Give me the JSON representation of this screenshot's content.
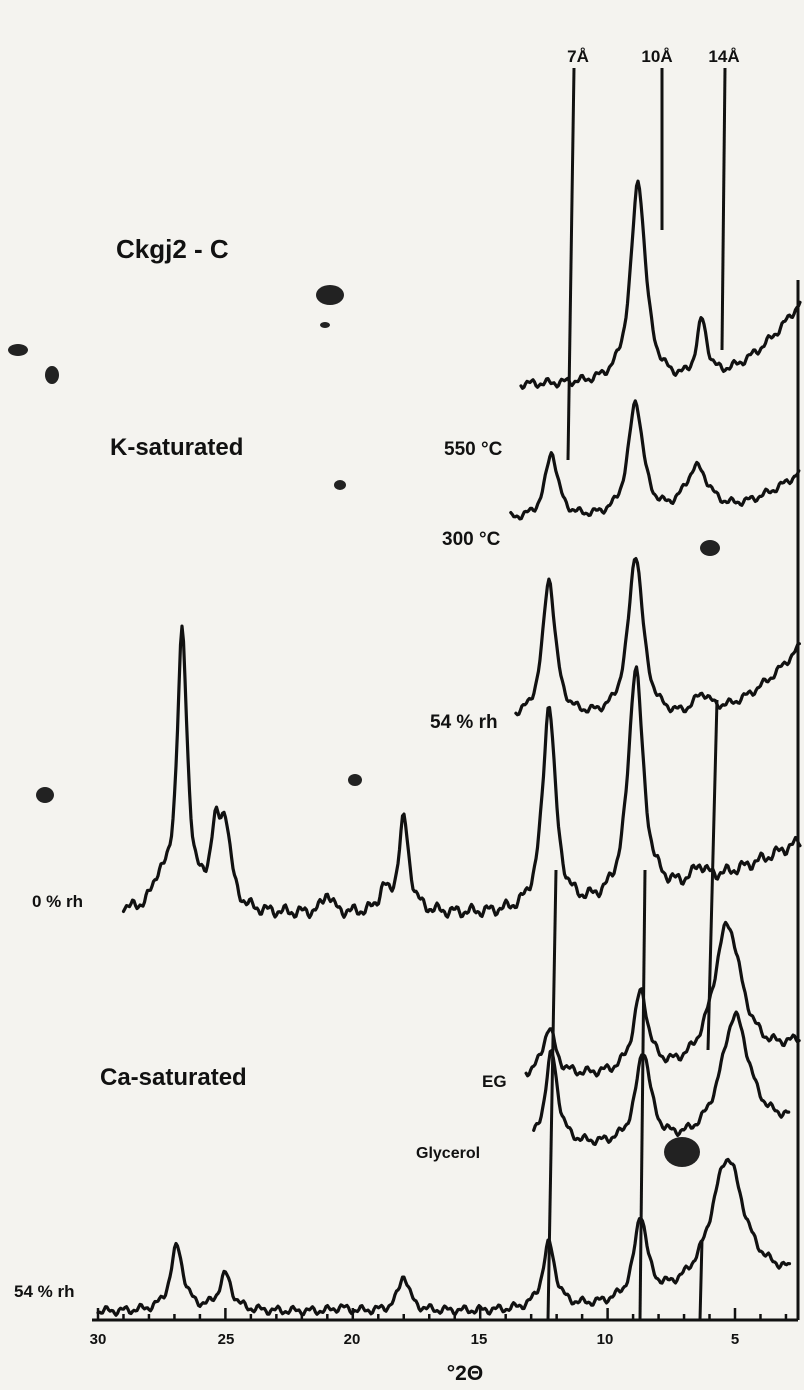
{
  "chart_data": {
    "type": "line",
    "title": "Ckgj2 - C",
    "xlabel": "°2Θ",
    "ylabel": "",
    "xlim": [
      30,
      3
    ],
    "x_reversed": true,
    "x_ticks": [
      30,
      25,
      20,
      15,
      10,
      5
    ],
    "reference_lines": [
      {
        "label": "7Å",
        "x": 12.3
      },
      {
        "label": "10Å",
        "x": 8.8
      },
      {
        "label": "14Å",
        "x": 6.2
      }
    ],
    "groups": [
      {
        "label": "K-saturated",
        "series": [
          "550 °C",
          "300 °C",
          "54 % rh",
          "0 % rh"
        ]
      },
      {
        "label": "Ca-saturated",
        "series": [
          "EG",
          "Glycerol",
          "54 % rh"
        ]
      }
    ],
    "series": [
      {
        "name": "550 °C",
        "label": "550 °C",
        "x_start": 13.4,
        "peaks": [
          {
            "x": 8.8,
            "height": 5.5,
            "width": 0.35
          },
          {
            "x": 6.3,
            "height": 1.6,
            "width": 0.25
          }
        ],
        "baseline_rise": 2.2
      },
      {
        "name": "300 °C",
        "label": "300 °C",
        "x_start": 13.8,
        "peaks": [
          {
            "x": 12.2,
            "height": 2.0,
            "width": 0.3
          },
          {
            "x": 8.9,
            "height": 3.5,
            "width": 0.35
          },
          {
            "x": 6.5,
            "height": 1.5,
            "width": 0.6
          }
        ],
        "baseline_rise": 1.4
      },
      {
        "name": "54 % rh",
        "label": "54 % rh",
        "x_start": 13.6,
        "peaks": [
          {
            "x": 12.3,
            "height": 4.0,
            "width": 0.3
          },
          {
            "x": 8.9,
            "height": 4.7,
            "width": 0.35
          },
          {
            "x": 6.3,
            "height": 0.6,
            "width": 0.4
          }
        ],
        "baseline_rise": 2.1
      },
      {
        "name": "0 % rh",
        "label": "0 % rh",
        "x_start": 29.0,
        "peaks": [
          {
            "x": 29.3,
            "height": 0.3,
            "width": 0.2
          },
          {
            "x": 27.6,
            "height": 0.5,
            "width": 0.3
          },
          {
            "x": 26.7,
            "height": 5.3,
            "width": 0.25
          },
          {
            "x": 25.4,
            "height": 1.3,
            "width": 0.25
          },
          {
            "x": 25.0,
            "height": 1.5,
            "width": 0.25
          },
          {
            "x": 21.0,
            "height": 0.4,
            "width": 0.2
          },
          {
            "x": 18.8,
            "height": 0.4,
            "width": 0.2
          },
          {
            "x": 18.0,
            "height": 1.8,
            "width": 0.25
          },
          {
            "x": 12.3,
            "height": 4.0,
            "width": 0.3
          },
          {
            "x": 8.9,
            "height": 4.5,
            "width": 0.35
          },
          {
            "x": 6.4,
            "height": 0.3,
            "width": 0.3
          }
        ],
        "baseline_rise": 1.4
      },
      {
        "name": "EG",
        "label": "EG",
        "x_start": 13.2,
        "peaks": [
          {
            "x": 12.3,
            "height": 1.2,
            "width": 0.3
          },
          {
            "x": 8.7,
            "height": 2.0,
            "width": 0.35
          },
          {
            "x": 5.3,
            "height": 3.7,
            "width": 0.7
          }
        ],
        "baseline_rise": 0.8
      },
      {
        "name": "Glycerol",
        "label": "Glycerol",
        "x_start": 12.9,
        "peaks": [
          {
            "x": 12.2,
            "height": 2.5,
            "width": 0.3
          },
          {
            "x": 8.6,
            "height": 2.5,
            "width": 0.35
          },
          {
            "x": 5.0,
            "height": 3.4,
            "width": 0.7
          }
        ],
        "baseline_rise": 0.6
      },
      {
        "name": "54 % rh (Ca)",
        "label": "54 % rh",
        "x_start": 30.0,
        "peaks": [
          {
            "x": 26.9,
            "height": 1.8,
            "width": 0.3
          },
          {
            "x": 25.0,
            "height": 1.0,
            "width": 0.3
          },
          {
            "x": 20.5,
            "height": 0.1,
            "width": 0.3
          },
          {
            "x": 18.0,
            "height": 1.0,
            "width": 0.25
          },
          {
            "x": 12.3,
            "height": 1.8,
            "width": 0.3
          },
          {
            "x": 8.7,
            "height": 2.3,
            "width": 0.3
          },
          {
            "x": 5.3,
            "height": 3.7,
            "width": 0.8
          }
        ],
        "baseline_rise": 0.9
      }
    ]
  },
  "labels": {
    "sample": "Ckgj2 - C",
    "k_sat": "K-saturated",
    "ca_sat": "Ca-saturated",
    "t550": "550 °C",
    "t300": "300 °C",
    "k54": "54 % rh",
    "k0": "0 % rh",
    "eg": "EG",
    "gly": "Glycerol",
    "ca54": "54 % rh",
    "ref7": "7Å",
    "ref10": "10Å",
    "ref14": "14Å",
    "xlabel": "°2Θ",
    "tick30": "30",
    "tick25": "25",
    "tick20": "20",
    "tick15": "15",
    "tick10": "10",
    "tick5": "5"
  }
}
